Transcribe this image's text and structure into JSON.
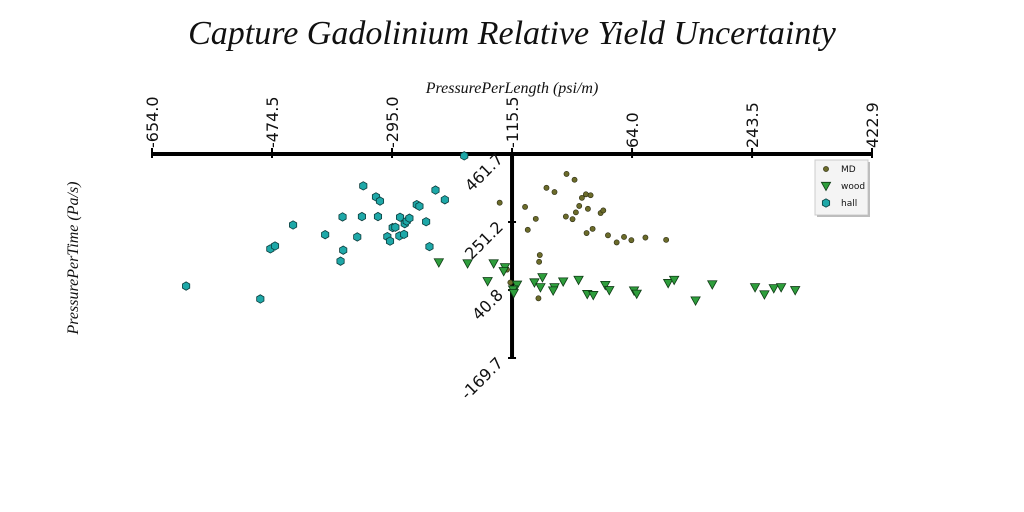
{
  "chart_data": {
    "type": "scatter",
    "title": "Capture Gadolinium Relative Yield Uncertainty",
    "xlabel": "PressurePerLength (psi/m)",
    "ylabel": "PressurePerTime (Pa/s)",
    "xlim": [
      -654.0,
      422.9
    ],
    "ylim": [
      -169.7,
      461.7
    ],
    "x_ticks": [
      "-654.0",
      "-474.5",
      "-295.0",
      "-115.5",
      "64.0",
      "243.5",
      "422.9"
    ],
    "y_ticks": [
      "461.7",
      "251.2",
      "40.8",
      "-169.7"
    ],
    "legend_position": "top-right",
    "grid": false,
    "series": [
      {
        "name": "MD",
        "marker": "circle-small",
        "color": "#6b6b2a",
        "points": [
          [
            -134,
            311
          ],
          [
            -123,
            104
          ],
          [
            -118,
            64
          ],
          [
            -96,
            298
          ],
          [
            -75,
            128
          ],
          [
            -74,
            149
          ],
          [
            -34,
            400
          ],
          [
            -22,
            382
          ],
          [
            -15,
            301
          ],
          [
            -11,
            326
          ],
          [
            -5,
            337
          ],
          [
            -4,
            217
          ],
          [
            -2,
            292
          ],
          [
            -76,
            15
          ],
          [
            -35,
            268
          ],
          [
            -25,
            260
          ],
          [
            -20,
            281
          ],
          [
            2,
            334
          ],
          [
            5,
            230
          ],
          [
            17,
            279
          ],
          [
            21,
            287
          ],
          [
            28,
            210
          ],
          [
            41,
            188
          ],
          [
            52,
            205
          ],
          [
            63,
            195
          ],
          [
            84,
            203
          ],
          [
            115,
            196
          ],
          [
            -92,
            227
          ],
          [
            -80,
            261
          ],
          [
            -64,
            357
          ],
          [
            -52,
            344
          ]
        ]
      },
      {
        "name": "wood",
        "marker": "triangle-down",
        "color": "#2e9e3c",
        "points": [
          [
            -225,
            126
          ],
          [
            -152,
            68
          ],
          [
            -108,
            57
          ],
          [
            -82,
            64
          ],
          [
            -73,
            49
          ],
          [
            -52,
            49
          ],
          [
            -39,
            67
          ],
          [
            -3,
            28
          ],
          [
            6,
            25
          ],
          [
            24,
            56
          ],
          [
            30,
            40
          ],
          [
            67,
            39
          ],
          [
            71,
            29
          ],
          [
            118,
            62
          ],
          [
            127,
            72
          ],
          [
            159,
            8
          ],
          [
            184,
            58
          ],
          [
            248,
            49
          ],
          [
            262,
            27
          ],
          [
            276,
            46
          ],
          [
            287,
            49
          ],
          [
            308,
            40
          ],
          [
            -16,
            72
          ],
          [
            -114,
            42
          ],
          [
            -182,
            123
          ],
          [
            -126,
            111
          ],
          [
            -143,
            123
          ],
          [
            -113,
            31
          ],
          [
            -70,
            80
          ],
          [
            -54,
            39
          ],
          [
            -128,
            99
          ]
        ]
      },
      {
        "name": "hall",
        "marker": "hexagon",
        "color": "#1ea8a8",
        "points": [
          [
            -603,
            53
          ],
          [
            -492,
            13
          ],
          [
            -477,
            168
          ],
          [
            -470,
            177
          ],
          [
            -443,
            242
          ],
          [
            -395,
            212
          ],
          [
            -372,
            130
          ],
          [
            -369,
            267
          ],
          [
            -368,
            164
          ],
          [
            -347,
            205
          ],
          [
            -340,
            268
          ],
          [
            -338,
            363
          ],
          [
            -319,
            329
          ],
          [
            -316,
            268
          ],
          [
            -313,
            316
          ],
          [
            -302,
            206
          ],
          [
            -298,
            192
          ],
          [
            -294,
            234
          ],
          [
            -290,
            235
          ],
          [
            -284,
            208
          ],
          [
            -283,
            266
          ],
          [
            -277,
            213
          ],
          [
            -276,
            246
          ],
          [
            -273,
            254
          ],
          [
            -269,
            263
          ],
          [
            -258,
            305
          ],
          [
            -254,
            300
          ],
          [
            -244,
            252
          ],
          [
            -239,
            175
          ],
          [
            -230,
            350
          ],
          [
            -216,
            320
          ],
          [
            -187,
            456
          ]
        ]
      }
    ]
  }
}
